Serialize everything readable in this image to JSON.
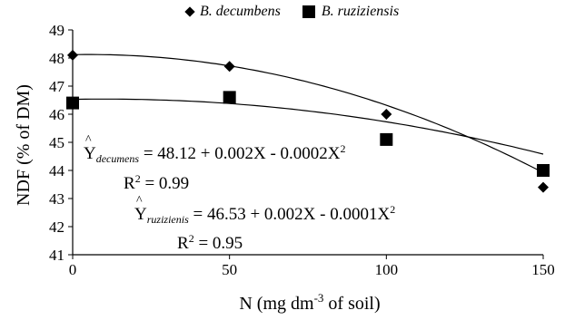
{
  "chart_data": {
    "type": "scatter",
    "x": [
      0,
      50,
      100,
      150
    ],
    "series": [
      {
        "name": "B. decumbens",
        "marker": "diamond",
        "values": [
          48.1,
          47.7,
          46.0,
          43.4
        ]
      },
      {
        "name": "B. ruziziensis",
        "marker": "square",
        "values": [
          46.4,
          46.6,
          45.1,
          44.0
        ]
      }
    ],
    "trendlines": [
      {
        "series": "B. decumbens",
        "intercept": 48.12,
        "linear": 0.002,
        "quadratic": -0.0002
      },
      {
        "series": "B. ruziziensis",
        "intercept": 46.53,
        "linear": 0.002,
        "quadratic": -0.0001
      }
    ],
    "annotations": {
      "eq1_label": "Y",
      "eq1_sub": "decumens",
      "eq1_rhs": " = 48.12 + 0.002X - 0.0002X",
      "eq1_sup": "2",
      "r2_1_label": "R",
      "r2_1_sup": "2",
      "r2_1_value": " = 0.99",
      "eq2_label": "Y",
      "eq2_sub": "ruzizienis",
      "eq2_rhs": " = 46.53 + 0.002X - 0.0001X",
      "eq2_sup": "2",
      "r2_2_label": "R",
      "r2_2_sup": "2",
      "r2_2_value": " = 0.95"
    },
    "xlabel_pre": "N (mg dm",
    "xlabel_sup": "-3",
    "xlabel_post": " of soil)",
    "ylabel": "NDF (% of DM)",
    "xlim": [
      0,
      150
    ],
    "ylim": [
      41,
      49
    ],
    "xticks": [
      0,
      50,
      100,
      150
    ],
    "yticks": [
      41,
      42,
      43,
      44,
      45,
      46,
      47,
      48,
      49
    ],
    "grid": false,
    "legend_position": "top"
  }
}
